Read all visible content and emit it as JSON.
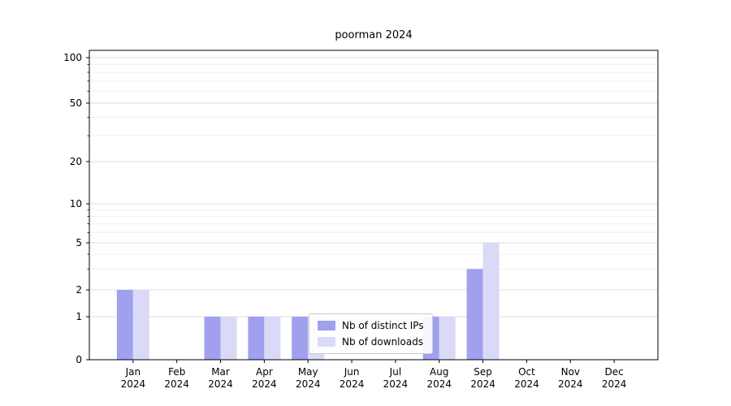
{
  "window": {
    "title": "poorman 2024"
  },
  "chart_data": {
    "type": "bar",
    "title": "poorman 2024",
    "xlabel": "",
    "ylabel": "",
    "scale": "symlog",
    "grid": true,
    "legend_position": "lower center inside",
    "categories": [
      "Jan",
      "Feb",
      "Mar",
      "Apr",
      "May",
      "Jun",
      "Jul",
      "Aug",
      "Sep",
      "Oct",
      "Nov",
      "Dec"
    ],
    "year_label": "2024",
    "series": [
      {
        "name": "Nb of distinct IPs",
        "color": "#a0a0ee",
        "values": [
          2,
          0,
          1,
          1,
          1,
          0,
          0,
          1,
          3,
          0,
          0,
          0
        ]
      },
      {
        "name": "Nb of downloads",
        "color": "#dadaf8",
        "values": [
          2,
          0,
          1,
          1,
          1,
          0,
          0,
          1,
          5,
          0,
          0,
          0
        ]
      }
    ],
    "yticks": [
      0,
      1,
      2,
      5,
      10,
      20,
      50,
      100
    ],
    "minor_yticks": [
      3,
      4,
      6,
      7,
      8,
      9,
      30,
      40,
      60,
      70,
      80,
      90
    ],
    "ylim": [
      0,
      110
    ]
  },
  "colors": {
    "axis": "#000000",
    "grid_major": "#dddddd",
    "grid_minor": "#f0f0f0",
    "background": "#ffffff"
  }
}
